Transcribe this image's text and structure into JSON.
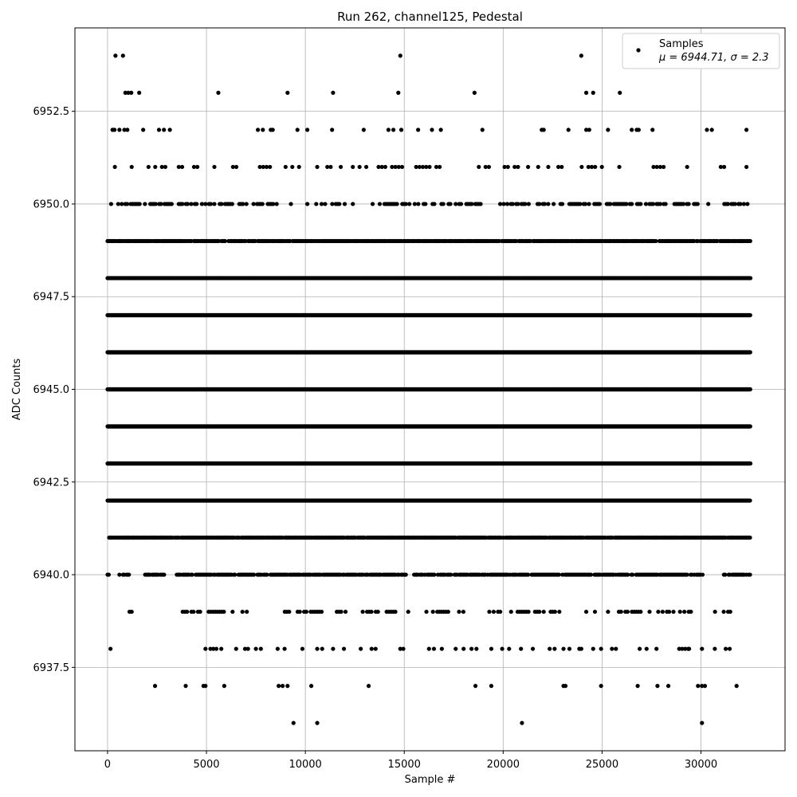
{
  "chart_data": {
    "type": "scatter",
    "title": "Run 262, channel125, Pedestal",
    "xlabel": "Sample #",
    "ylabel": "ADC Counts",
    "xlim": [
      -1650,
      34250
    ],
    "ylim": [
      6935.25,
      6954.75
    ],
    "x_ticks": [
      0,
      5000,
      10000,
      15000,
      20000,
      25000,
      30000
    ],
    "x_tick_labels": [
      "0",
      "5000",
      "10000",
      "15000",
      "20000",
      "25000",
      "30000"
    ],
    "y_ticks": [
      6937.5,
      6940.0,
      6942.5,
      6945.0,
      6947.5,
      6950.0,
      6952.5
    ],
    "y_tick_labels": [
      "6937.5",
      "6940.0",
      "6942.5",
      "6945.0",
      "6947.5",
      "6950.0",
      "6952.5"
    ],
    "grid": true,
    "legend": {
      "position": "top-right",
      "series_name": "Samples",
      "stats_text": "μ = 6944.71, σ = 2.3"
    },
    "colors": {
      "marker": "#000000",
      "grid": "#b0b0b0"
    },
    "sample_range": [
      0,
      32500
    ],
    "series": [
      {
        "name": "Samples",
        "levels": [
          {
            "y": 6954,
            "x": [
              400,
              780,
              14800,
              23950
            ]
          },
          {
            "y": 6953,
            "x": [
              900,
              1050,
              1200,
              1600,
              5600,
              9100,
              11400,
              14700,
              18550,
              24200,
              24550,
              25900
            ]
          },
          {
            "y": 6952,
            "x": [
              250,
              350,
              600,
              850,
              1000,
              1800,
              2600,
              2850,
              3150,
              7600,
              7850,
              8250,
              8350,
              9600,
              10100,
              11350,
              12950,
              14200,
              14450,
              14850,
              15700,
              16400,
              16850,
              18950,
              21950,
              22050,
              23300,
              24200,
              24350,
              25300,
              26500,
              26750,
              26850,
              27550,
              30300,
              30550,
              32300
            ]
          },
          {
            "y": 6951,
            "x_dense": [
              [
                200,
                3900
              ],
              [
                4200,
                4700
              ],
              [
                5400,
                5500
              ],
              [
                6000,
                6700
              ],
              [
                7700,
                8300
              ],
              [
                9000,
                9700
              ],
              [
                10600,
                12000
              ],
              [
                12400,
                13200
              ],
              [
                13700,
                15200
              ],
              [
                15600,
                17200
              ],
              [
                18600,
                19300
              ],
              [
                19900,
                23700
              ],
              [
                23800,
                25100
              ],
              [
                25700,
                26100
              ],
              [
                27600,
                29400
              ],
              [
                31000,
                31200
              ],
              [
                32300,
                32500
              ]
            ],
            "step": 170
          },
          {
            "y": 6950,
            "x_dense": [
              [
                0,
                8700
              ],
              [
                9000,
                9500
              ],
              [
                10100,
                12000
              ],
              [
                12400,
                12800
              ],
              [
                13400,
                13800
              ],
              [
                14000,
                22600
              ],
              [
                22900,
                30400
              ],
              [
                31000,
                32500
              ]
            ],
            "step": 90
          },
          {
            "y": 6949,
            "x_dense": [
              [
                0,
                32500
              ]
            ],
            "step": 45
          },
          {
            "y": 6948,
            "x_dense": [
              [
                0,
                32500
              ]
            ],
            "step": 25
          },
          {
            "y": 6947,
            "x_dense": [
              [
                0,
                32500
              ]
            ],
            "step": 18
          },
          {
            "y": 6946,
            "x_dense": [
              [
                0,
                32500
              ]
            ],
            "step": 18
          },
          {
            "y": 6945,
            "x_dense": [
              [
                0,
                32500
              ]
            ],
            "step": 18
          },
          {
            "y": 6944,
            "x_dense": [
              [
                0,
                32500
              ]
            ],
            "step": 18
          },
          {
            "y": 6943,
            "x_dense": [
              [
                0,
                32500
              ]
            ],
            "step": 20
          },
          {
            "y": 6942,
            "x_dense": [
              [
                0,
                32500
              ]
            ],
            "step": 28
          },
          {
            "y": 6941,
            "x_dense": [
              [
                0,
                32500
              ]
            ],
            "step": 40
          },
          {
            "y": 6940,
            "x_dense": [
              [
                0,
                100
              ],
              [
                600,
                1100
              ],
              [
                1900,
                2900
              ],
              [
                3500,
                15100
              ],
              [
                15500,
                30100
              ],
              [
                31100,
                32500
              ]
            ],
            "step": 60
          },
          {
            "y": 6939,
            "x_dense": [
              [
                1000,
                1300
              ],
              [
                3800,
                4800
              ],
              [
                5000,
                6400
              ],
              [
                6600,
                7400
              ],
              [
                8300,
                9200
              ],
              [
                9500,
                12100
              ],
              [
                12900,
                14600
              ],
              [
                15200,
                15300
              ],
              [
                15900,
                18200
              ],
              [
                19300,
                22100
              ],
              [
                22400,
                23300
              ],
              [
                24200,
                27100
              ],
              [
                27400,
                29900
              ],
              [
                30600,
                31800
              ]
            ],
            "step": 110
          },
          {
            "y": 6938,
            "x": [
              150,
              4950,
              5200,
              5350,
              5500,
              5750,
              6500,
              6950,
              7100,
              7500,
              7750,
              8600,
              8950,
              9850,
              10600,
              10850,
              11400,
              11950,
              12800,
              13350,
              13550,
              14800,
              14950,
              16250,
              16500,
              16900,
              17600,
              18000,
              18400,
              18650,
              19400,
              19950,
              20300,
              20900,
              21500,
              22350,
              22600,
              23050,
              23350,
              23850,
              23950,
              24550,
              24950,
              25500,
              25700,
              26900,
              27250,
              27750,
              28900,
              29050,
              29200,
              29350,
              29400,
              30050,
              30700,
              31250,
              31450
            ]
          },
          {
            "y": 6937,
            "x": [
              2400,
              3950,
              4850,
              4950,
              5900,
              8650,
              8850,
              9100,
              10300,
              13200,
              18600,
              19400,
              23050,
              23150,
              24950,
              26800,
              27800,
              28350,
              29850,
              30050,
              30200,
              31800
            ]
          },
          {
            "y": 6936,
            "x": [
              9400,
              10600,
              20950,
              30050
            ]
          }
        ]
      }
    ]
  }
}
